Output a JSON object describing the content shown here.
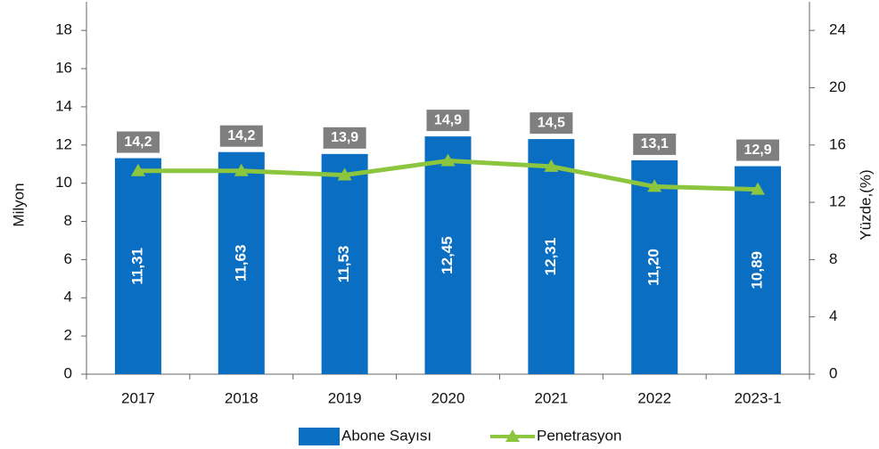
{
  "chart_data": {
    "type": "bar",
    "categories": [
      "2017",
      "2018",
      "2019",
      "2020",
      "2021",
      "2022",
      "2023-1"
    ],
    "series": [
      {
        "name": "Abone Sayısı",
        "type": "bar",
        "color": "#0a6fc2",
        "values": [
          11.31,
          11.63,
          11.53,
          12.45,
          12.31,
          11.2,
          10.89
        ],
        "value_labels": [
          "11,31",
          "11,63",
          "11,53",
          "12,45",
          "12,31",
          "11,20",
          "10,89"
        ]
      },
      {
        "name": "Penetrasyon",
        "type": "line",
        "axis": "y2",
        "color": "#8cc63f",
        "values": [
          14.2,
          14.2,
          13.9,
          14.9,
          14.5,
          13.1,
          12.9
        ],
        "value_labels": [
          "14,2",
          "14,2",
          "13,9",
          "14,9",
          "14,5",
          "13,1",
          "12,9"
        ]
      }
    ],
    "ylabel": "Milyon",
    "y2label": "Yüzde,(%)",
    "ylim": [
      0,
      19.5
    ],
    "yticks": [
      0,
      2,
      4,
      6,
      8,
      10,
      12,
      14,
      16,
      18
    ],
    "y2lim": [
      0,
      26
    ],
    "y2ticks": [
      0,
      4,
      8,
      12,
      16,
      20,
      24
    ],
    "grid": false,
    "legend": "bottom"
  }
}
